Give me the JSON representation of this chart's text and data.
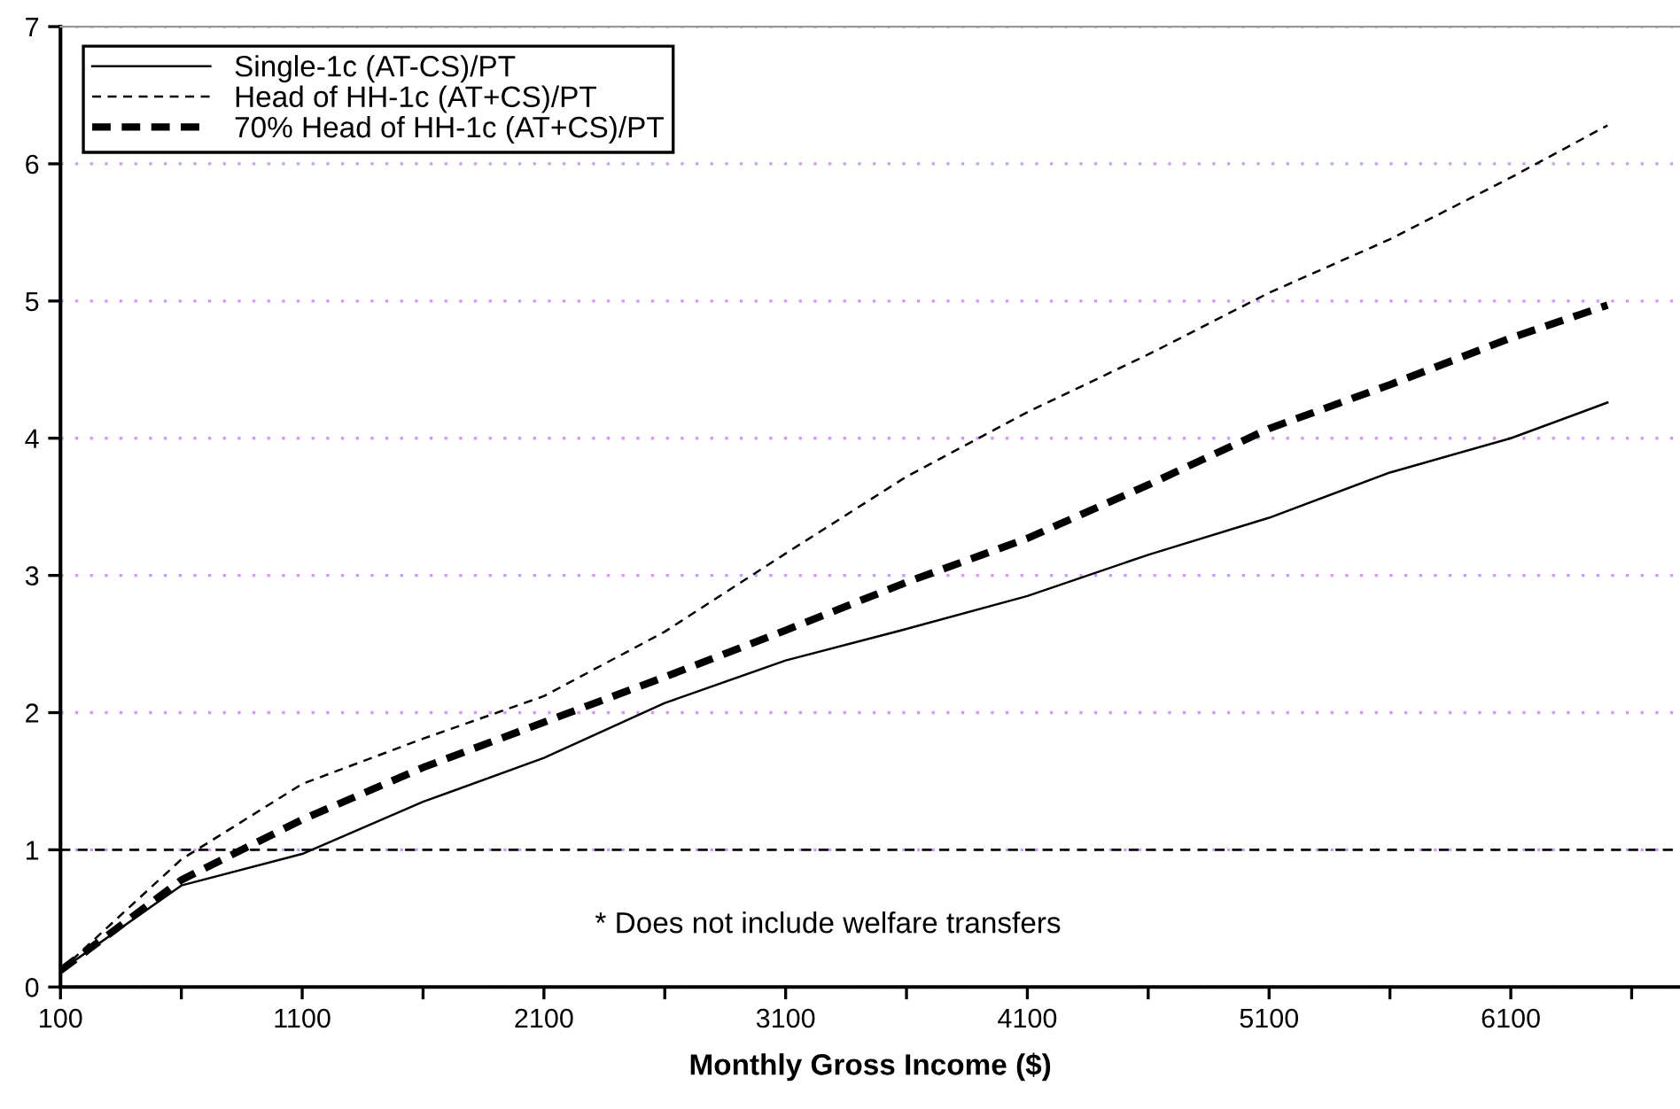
{
  "chart_data": {
    "type": "line",
    "xlabel": "Monthly Gross Income ($)",
    "x": [
      100,
      600,
      1100,
      1600,
      2100,
      2600,
      3100,
      3600,
      4100,
      4600,
      5100,
      5600,
      6100,
      6500
    ],
    "series": [
      {
        "name": "Single-1c (AT-CS)/PT",
        "color": "#000000",
        "line_style": "solid",
        "values": [
          0.12,
          0.74,
          0.97,
          1.35,
          1.67,
          2.07,
          2.38,
          2.61,
          2.85,
          3.15,
          3.42,
          3.75,
          4.0,
          4.26
        ]
      },
      {
        "name": "Head of HH-1c (AT+CS)/PT",
        "color": "#000000",
        "line_style": "dashed",
        "values": [
          0.12,
          0.93,
          1.48,
          1.81,
          2.12,
          2.59,
          3.16,
          3.72,
          4.19,
          4.61,
          5.06,
          5.45,
          5.9,
          6.28
        ]
      },
      {
        "name": "70% Head of HH-1c (AT+CS)/PT",
        "color": "#000000",
        "line_style": "longdash",
        "values": [
          0.12,
          0.78,
          1.22,
          1.6,
          1.93,
          2.26,
          2.6,
          2.95,
          3.27,
          3.66,
          4.07,
          4.39,
          4.73,
          4.97
        ]
      }
    ],
    "xlim": [
      100,
      6800
    ],
    "xticks": [
      100,
      {
        "value": 600,
        "label": null
      },
      1100,
      {
        "value": 1600,
        "label": null
      },
      2100,
      {
        "value": 2600,
        "label": null
      },
      3100,
      {
        "value": 3600,
        "label": null
      },
      4100,
      {
        "value": 4600,
        "label": null
      },
      5100,
      {
        "value": 5600,
        "label": null
      },
      6100,
      {
        "value": 6600,
        "label": null
      }
    ],
    "ylim": [
      0,
      7
    ],
    "yticks": [
      0,
      1,
      2,
      3,
      4,
      5,
      6,
      7
    ],
    "grid": "y",
    "ref_lines": [
      {
        "axis": "y",
        "value": 1,
        "color": "#000000",
        "line_style": "dashed"
      }
    ],
    "annotations": [
      "* Does not include welfare transfers"
    ],
    "legend": "top left"
  }
}
